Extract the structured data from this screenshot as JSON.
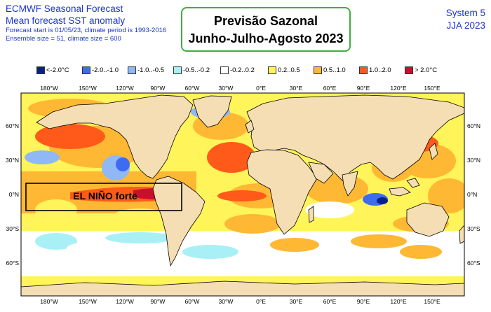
{
  "header": {
    "line1": "ECMWF Seasonal Forecast",
    "line2": "Mean forecast SST anomaly",
    "line3": "Forecast start is 01/05/23, climate period is 1993-2016",
    "line4": "Ensemble size = 51, climate size = 600",
    "system": "System 5",
    "season": "JJA 2023"
  },
  "title_box": {
    "line1": "Previsão Sazonal",
    "line2": "Junho-Julho-Agosto 2023"
  },
  "legend": [
    {
      "label": "<-2.0°C",
      "color": "#0a1f8f"
    },
    {
      "label": "-2.0..-1.0",
      "color": "#3d6cf0"
    },
    {
      "label": "-1.0..-0.5",
      "color": "#8fb8f5"
    },
    {
      "label": "-0.5..-0.2",
      "color": "#a8f0f5"
    },
    {
      "label": "-0.2..0.2",
      "color": "#ffffff"
    },
    {
      "label": "0.2..0.5",
      "color": "#fff45a"
    },
    {
      "label": "0.5..1.0",
      "color": "#ffb833"
    },
    {
      "label": "1.0..2.0",
      "color": "#ff5a1a"
    },
    {
      "label": "> 2.0°C",
      "color": "#c8102e"
    }
  ],
  "map": {
    "lon_labels": [
      "180°W",
      "150°W",
      "120°W",
      "90°W",
      "60°W",
      "30°W",
      "0°E",
      "30°E",
      "60°E",
      "90°E",
      "120°E",
      "150°E"
    ],
    "lat_labels": [
      "60°N",
      "30°N",
      "0°N",
      "30°S",
      "60°S"
    ],
    "annotation": "EL NIÑO forte",
    "colors": {
      "land": "#f5deb3",
      "border": "#000000"
    }
  }
}
